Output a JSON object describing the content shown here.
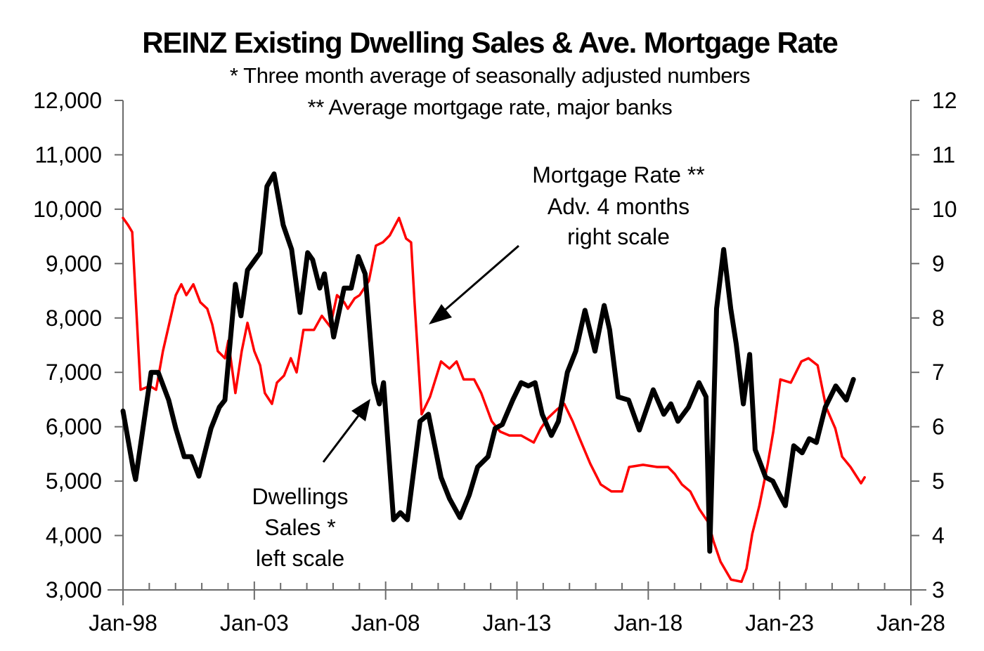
{
  "chart_data": {
    "type": "line",
    "title": "REINZ Existing Dwelling Sales & Ave. Mortgage Rate",
    "subtitles": [
      "* Three month average of seasonally adjusted numbers",
      "** Average mortgage rate, major banks"
    ],
    "xlabel": "",
    "ylabel_left": "",
    "ylabel_right": "",
    "x_range": [
      1998,
      2028
    ],
    "x_ticks": [
      {
        "value": 1998,
        "label": "Jan-98"
      },
      {
        "value": 2003,
        "label": "Jan-03"
      },
      {
        "value": 2008,
        "label": "Jan-08"
      },
      {
        "value": 2013,
        "label": "Jan-13"
      },
      {
        "value": 2018,
        "label": "Jan-18"
      },
      {
        "value": 2023,
        "label": "Jan-23"
      },
      {
        "value": 2028,
        "label": "Jan-28"
      }
    ],
    "y_left_range": [
      3000,
      12000
    ],
    "y_left_ticks": [
      {
        "value": 3000,
        "label": "3,000"
      },
      {
        "value": 4000,
        "label": "4,000"
      },
      {
        "value": 5000,
        "label": "5,000"
      },
      {
        "value": 6000,
        "label": "6,000"
      },
      {
        "value": 7000,
        "label": "7,000"
      },
      {
        "value": 8000,
        "label": "8,000"
      },
      {
        "value": 9000,
        "label": "9,000"
      },
      {
        "value": 10000,
        "label": "10,000"
      },
      {
        "value": 11000,
        "label": "11,000"
      },
      {
        "value": 12000,
        "label": "12,000"
      }
    ],
    "y_right_range": [
      3,
      12
    ],
    "y_right_ticks": [
      {
        "value": 3,
        "label": "3"
      },
      {
        "value": 4,
        "label": "4"
      },
      {
        "value": 5,
        "label": "5"
      },
      {
        "value": 6,
        "label": "6"
      },
      {
        "value": 7,
        "label": "7"
      },
      {
        "value": 8,
        "label": "8"
      },
      {
        "value": 9,
        "label": "9"
      },
      {
        "value": 10,
        "label": "10"
      },
      {
        "value": 11,
        "label": "11"
      },
      {
        "value": 12,
        "label": "12"
      }
    ],
    "grid": false,
    "legend": "none (inline annotations)",
    "series": [
      {
        "name": "Dwellings Sales * (left scale)",
        "axis": "left",
        "color": "#000000",
        "points": [
          [
            1998.0,
            6290
          ],
          [
            1998.4,
            5200
          ],
          [
            1998.48,
            5030
          ],
          [
            1999.07,
            7000
          ],
          [
            1999.34,
            7000
          ],
          [
            1999.74,
            6490
          ],
          [
            2000.01,
            5970
          ],
          [
            2000.33,
            5450
          ],
          [
            2000.6,
            5450
          ],
          [
            2000.89,
            5090
          ],
          [
            2001.35,
            5970
          ],
          [
            2001.67,
            6360
          ],
          [
            2001.88,
            6490
          ],
          [
            2002.28,
            8620
          ],
          [
            2002.49,
            8040
          ],
          [
            2002.74,
            8880
          ],
          [
            2003.22,
            9200
          ],
          [
            2003.48,
            10420
          ],
          [
            2003.75,
            10650
          ],
          [
            2004.1,
            9710
          ],
          [
            2004.42,
            9260
          ],
          [
            2004.74,
            8100
          ],
          [
            2005.03,
            9200
          ],
          [
            2005.22,
            9070
          ],
          [
            2005.49,
            8550
          ],
          [
            2005.67,
            8810
          ],
          [
            2006.02,
            7650
          ],
          [
            2006.42,
            8550
          ],
          [
            2006.69,
            8550
          ],
          [
            2006.96,
            9130
          ],
          [
            2007.22,
            8810
          ],
          [
            2007.55,
            6810
          ],
          [
            2007.76,
            6420
          ],
          [
            2007.92,
            6810
          ],
          [
            2008.3,
            4290
          ],
          [
            2008.56,
            4420
          ],
          [
            2008.83,
            4290
          ],
          [
            2009.31,
            6100
          ],
          [
            2009.63,
            6230
          ],
          [
            2010.11,
            5070
          ],
          [
            2010.43,
            4680
          ],
          [
            2010.83,
            4330
          ],
          [
            2011.18,
            4740
          ],
          [
            2011.5,
            5260
          ],
          [
            2011.9,
            5450
          ],
          [
            2012.17,
            5970
          ],
          [
            2012.44,
            6040
          ],
          [
            2012.84,
            6490
          ],
          [
            2013.16,
            6810
          ],
          [
            2013.43,
            6750
          ],
          [
            2013.69,
            6810
          ],
          [
            2013.96,
            6230
          ],
          [
            2014.31,
            5840
          ],
          [
            2014.58,
            6100
          ],
          [
            2014.92,
            7000
          ],
          [
            2015.24,
            7390
          ],
          [
            2015.59,
            8140
          ],
          [
            2015.97,
            7390
          ],
          [
            2016.32,
            8230
          ],
          [
            2016.53,
            7780
          ],
          [
            2016.85,
            6550
          ],
          [
            2017.25,
            6490
          ],
          [
            2017.66,
            5940
          ],
          [
            2018.19,
            6680
          ],
          [
            2018.59,
            6230
          ],
          [
            2018.86,
            6420
          ],
          [
            2019.13,
            6100
          ],
          [
            2019.53,
            6360
          ],
          [
            2019.93,
            6810
          ],
          [
            2020.2,
            6550
          ],
          [
            2020.34,
            3710
          ],
          [
            2020.6,
            8170
          ],
          [
            2020.87,
            9260
          ],
          [
            2021.14,
            8170
          ],
          [
            2021.35,
            7520
          ],
          [
            2021.62,
            6420
          ],
          [
            2021.86,
            7330
          ],
          [
            2022.07,
            5580
          ],
          [
            2022.47,
            5070
          ],
          [
            2022.74,
            5000
          ],
          [
            2023.01,
            4740
          ],
          [
            2023.22,
            4550
          ],
          [
            2023.54,
            5650
          ],
          [
            2023.86,
            5520
          ],
          [
            2024.13,
            5780
          ],
          [
            2024.4,
            5710
          ],
          [
            2024.74,
            6360
          ],
          [
            2025.14,
            6750
          ],
          [
            2025.54,
            6490
          ],
          [
            2025.81,
            6870
          ]
        ]
      },
      {
        "name": "Mortgage Rate ** Adv. 4 months (right scale)",
        "axis": "right",
        "color": "#ff0000",
        "points": [
          [
            1998.0,
            9.84
          ],
          [
            1998.19,
            9.71
          ],
          [
            1998.35,
            9.58
          ],
          [
            1998.67,
            6.68
          ],
          [
            1999.02,
            6.75
          ],
          [
            1999.26,
            6.68
          ],
          [
            1999.52,
            7.39
          ],
          [
            2000.01,
            8.42
          ],
          [
            2000.22,
            8.62
          ],
          [
            2000.41,
            8.42
          ],
          [
            2000.68,
            8.62
          ],
          [
            2000.94,
            8.29
          ],
          [
            2001.21,
            8.17
          ],
          [
            2001.4,
            7.88
          ],
          [
            2001.61,
            7.39
          ],
          [
            2001.88,
            7.26
          ],
          [
            2002.01,
            7.58
          ],
          [
            2002.28,
            6.62
          ],
          [
            2002.52,
            7.39
          ],
          [
            2002.74,
            7.91
          ],
          [
            2003.0,
            7.39
          ],
          [
            2003.22,
            7.13
          ],
          [
            2003.4,
            6.62
          ],
          [
            2003.67,
            6.42
          ],
          [
            2003.86,
            6.81
          ],
          [
            2004.13,
            6.94
          ],
          [
            2004.39,
            7.26
          ],
          [
            2004.61,
            7.0
          ],
          [
            2004.87,
            7.78
          ],
          [
            2005.27,
            7.78
          ],
          [
            2005.57,
            8.04
          ],
          [
            2005.89,
            7.84
          ],
          [
            2006.15,
            8.42
          ],
          [
            2006.42,
            8.29
          ],
          [
            2006.56,
            8.17
          ],
          [
            2006.82,
            8.36
          ],
          [
            2007.01,
            8.42
          ],
          [
            2007.36,
            8.68
          ],
          [
            2007.63,
            9.33
          ],
          [
            2007.89,
            9.39
          ],
          [
            2008.16,
            9.52
          ],
          [
            2008.51,
            9.84
          ],
          [
            2008.78,
            9.46
          ],
          [
            2008.97,
            9.39
          ],
          [
            2009.1,
            8.29
          ],
          [
            2009.37,
            6.23
          ],
          [
            2009.69,
            6.55
          ],
          [
            2010.11,
            7.2
          ],
          [
            2010.43,
            7.07
          ],
          [
            2010.7,
            7.2
          ],
          [
            2010.97,
            6.87
          ],
          [
            2011.37,
            6.87
          ],
          [
            2011.64,
            6.62
          ],
          [
            2012.04,
            6.1
          ],
          [
            2012.36,
            5.91
          ],
          [
            2012.71,
            5.84
          ],
          [
            2013.16,
            5.84
          ],
          [
            2013.64,
            5.71
          ],
          [
            2013.91,
            5.97
          ],
          [
            2014.18,
            6.16
          ],
          [
            2014.53,
            6.32
          ],
          [
            2014.8,
            6.42
          ],
          [
            2015.12,
            6.1
          ],
          [
            2015.39,
            5.78
          ],
          [
            2015.79,
            5.32
          ],
          [
            2016.19,
            4.94
          ],
          [
            2016.6,
            4.81
          ],
          [
            2017.0,
            4.81
          ],
          [
            2017.27,
            5.26
          ],
          [
            2017.8,
            5.3
          ],
          [
            2018.34,
            5.26
          ],
          [
            2018.75,
            5.26
          ],
          [
            2019.01,
            5.13
          ],
          [
            2019.28,
            4.94
          ],
          [
            2019.6,
            4.81
          ],
          [
            2019.95,
            4.48
          ],
          [
            2020.3,
            4.23
          ],
          [
            2020.48,
            3.9
          ],
          [
            2020.75,
            3.52
          ],
          [
            2021.15,
            3.19
          ],
          [
            2021.55,
            3.15
          ],
          [
            2021.74,
            3.39
          ],
          [
            2021.96,
            4.03
          ],
          [
            2022.23,
            4.55
          ],
          [
            2022.55,
            5.32
          ],
          [
            2022.76,
            5.91
          ],
          [
            2023.03,
            6.87
          ],
          [
            2023.43,
            6.81
          ],
          [
            2023.83,
            7.2
          ],
          [
            2024.1,
            7.26
          ],
          [
            2024.45,
            7.13
          ],
          [
            2024.77,
            6.36
          ],
          [
            2025.12,
            5.97
          ],
          [
            2025.38,
            5.45
          ],
          [
            2025.7,
            5.26
          ],
          [
            2026.1,
            4.96
          ],
          [
            2026.24,
            5.07
          ]
        ]
      }
    ],
    "annotations": [
      {
        "id": "mortgage",
        "lines": [
          "Mortgage Rate **",
          "Adv. 4 months",
          "right scale"
        ],
        "points_to": "Mortgage Rate series near Jan-09"
      },
      {
        "id": "dwellings",
        "lines": [
          "Dwellings",
          "Sales *",
          "left scale"
        ],
        "points_to": "Dwelling Sales series near Jan-08"
      }
    ]
  }
}
